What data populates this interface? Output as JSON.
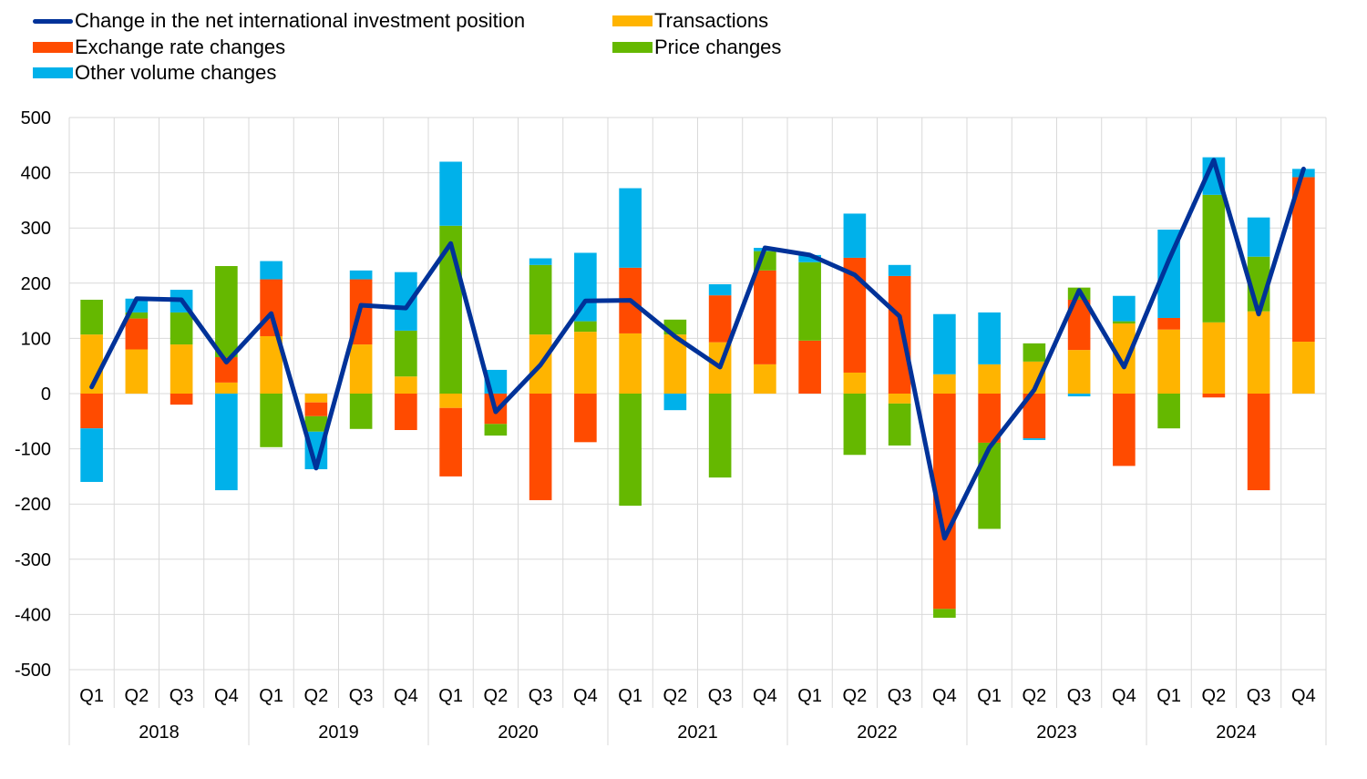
{
  "chart_data": {
    "type": "bar",
    "stacked": true,
    "title": "",
    "xlabel": "",
    "ylabel": "",
    "ylim": [
      -500,
      500
    ],
    "yticks": [
      500,
      400,
      300,
      200,
      100,
      0,
      -100,
      -200,
      -300,
      -400,
      -500
    ],
    "grid": true,
    "legend_position": "top-left",
    "categories": [
      "Q1",
      "Q2",
      "Q3",
      "Q4",
      "Q1",
      "Q2",
      "Q3",
      "Q4",
      "Q1",
      "Q2",
      "Q3",
      "Q4",
      "Q1",
      "Q2",
      "Q3",
      "Q4",
      "Q1",
      "Q2",
      "Q3",
      "Q4",
      "Q1",
      "Q2",
      "Q3",
      "Q4",
      "Q1",
      "Q2",
      "Q3",
      "Q4"
    ],
    "year_groups": [
      {
        "label": "2018",
        "count": 4
      },
      {
        "label": "2019",
        "count": 4
      },
      {
        "label": "2020",
        "count": 4
      },
      {
        "label": "2021",
        "count": 4
      },
      {
        "label": "2022",
        "count": 4
      },
      {
        "label": "2023",
        "count": 4
      },
      {
        "label": "2024",
        "count": 4
      }
    ],
    "series": [
      {
        "name": "Transactions",
        "kind": "bar",
        "color": "#FFB400",
        "values": [
          107,
          80,
          89,
          20,
          104,
          -16,
          89,
          31,
          -26,
          0,
          107,
          112,
          109,
          107,
          93,
          53,
          0,
          38,
          -18,
          35,
          53,
          58,
          79,
          127,
          116,
          129,
          149,
          94
        ]
      },
      {
        "name": "Exchange rate changes",
        "kind": "bar",
        "color": "#FF4B00",
        "values": [
          -63,
          56,
          -20,
          46,
          103,
          -25,
          118,
          -66,
          -124,
          -55,
          -193,
          -88,
          119,
          0,
          85,
          170,
          96,
          208,
          213,
          -390,
          -89,
          -81,
          91,
          -131,
          21,
          -7,
          -175,
          298
        ]
      },
      {
        "name": "Price changes",
        "kind": "bar",
        "color": "#65B800",
        "values": [
          63,
          11,
          58,
          165,
          -97,
          -28,
          -64,
          83,
          304,
          -21,
          126,
          19,
          -203,
          27,
          -152,
          35,
          142,
          -111,
          -76,
          -16,
          -156,
          33,
          22,
          4,
          -63,
          231,
          99,
          0
        ]
      },
      {
        "name": "Other volume changes",
        "kind": "bar",
        "color": "#00B1EA",
        "values": [
          -97,
          25,
          41,
          -175,
          33,
          -68,
          16,
          106,
          116,
          43,
          12,
          124,
          144,
          -30,
          20,
          6,
          13,
          80,
          20,
          109,
          94,
          -3,
          -5,
          46,
          160,
          68,
          71,
          15
        ]
      },
      {
        "name": "Change in the net international investment position",
        "kind": "line",
        "color": "#003299",
        "values": [
          12,
          172,
          170,
          57,
          145,
          -135,
          160,
          155,
          272,
          -33,
          52,
          168,
          169,
          103,
          48,
          264,
          251,
          215,
          140,
          -262,
          -98,
          7,
          187,
          48,
          242,
          423,
          144,
          407
        ]
      }
    ]
  },
  "legend": {
    "items": [
      {
        "label": "Change in the net international investment position",
        "color": "#003299",
        "shape": "line"
      },
      {
        "label": "Transactions",
        "color": "#FFB400",
        "shape": "box"
      },
      {
        "label": "Exchange rate changes",
        "color": "#FF4B00",
        "shape": "box"
      },
      {
        "label": "Price changes",
        "color": "#65B800",
        "shape": "box"
      },
      {
        "label": "Other volume changes",
        "color": "#00B1EA",
        "shape": "box"
      }
    ]
  },
  "style": {
    "grid_color": "#D9D9D9",
    "text_color": "#000000"
  }
}
